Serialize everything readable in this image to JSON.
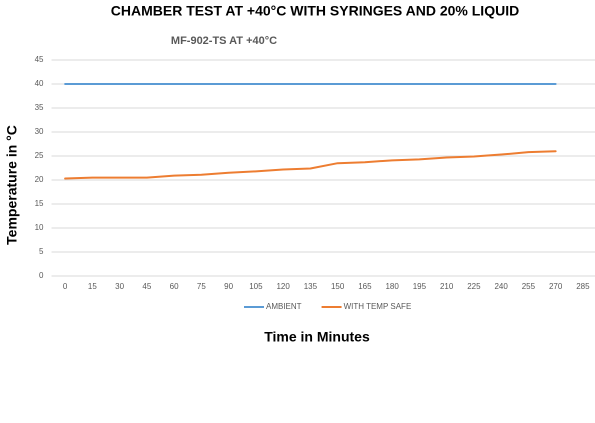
{
  "chart_data": {
    "type": "line",
    "title": "CHAMBER TEST AT +40°C WITH SYRINGES AND 20% LIQUID",
    "subtitle": "MF-902-TS AT +40°C",
    "y_label": "Temperature in °C",
    "x_label": "Time in Minutes",
    "categories": [
      0,
      15,
      30,
      45,
      60,
      75,
      90,
      105,
      120,
      135,
      150,
      165,
      180,
      195,
      210,
      225,
      240,
      255,
      270,
      285
    ],
    "series": [
      {
        "name": "AMBIENT",
        "color": "#5b9bd5",
        "values": [
          40,
          40,
          40,
          40,
          40,
          40,
          40,
          40,
          40,
          40,
          40,
          40,
          40,
          40,
          40,
          40,
          40,
          40,
          40,
          null
        ]
      },
      {
        "name": "WITH TEMP SAFE",
        "color": "#ed7d31",
        "values": [
          20.3,
          20.5,
          20.5,
          20.5,
          20.9,
          21.1,
          21.5,
          21.8,
          22.2,
          22.4,
          23.5,
          23.7,
          24.1,
          24.3,
          24.7,
          24.9,
          25.3,
          25.8,
          26,
          null
        ]
      }
    ],
    "ylim": [
      0,
      45
    ],
    "yticks": [
      0,
      5,
      10,
      15,
      20,
      25,
      30,
      35,
      40,
      45
    ],
    "grid": true,
    "legend": "bottom"
  }
}
